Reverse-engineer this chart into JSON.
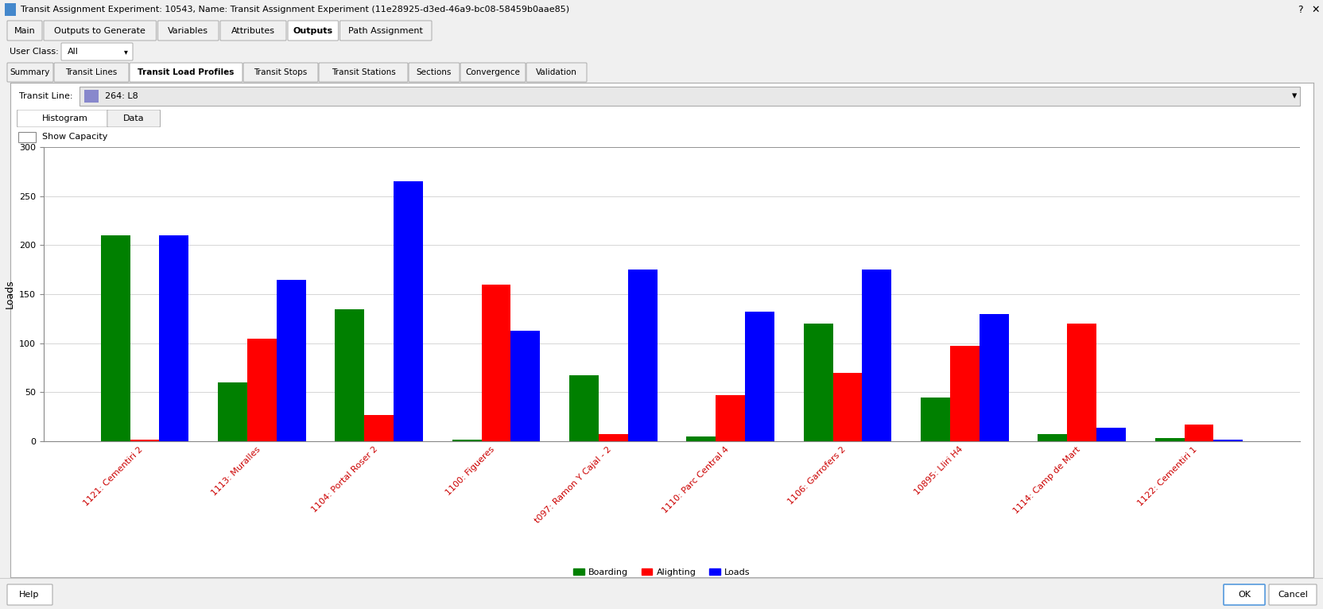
{
  "title": "Transit Assignment Experiment: 10543, Name: Transit Assignment Experiment (11e28925-d3ed-46a9-bc08-58459b0aae85)",
  "tab_labels": [
    "Main",
    "Outputs to Generate",
    "Variables",
    "Attributes",
    "Outputs",
    "Path Assignment"
  ],
  "active_tab": "Outputs",
  "sub_tabs": [
    "Summary",
    "Transit Lines",
    "Transit Load Profiles",
    "Transit Stops",
    "Transit Stations",
    "Sections",
    "Convergence",
    "Validation"
  ],
  "active_sub_tab": "Transit Load Profiles",
  "transit_line": "264: L8",
  "ylabel": "Loads",
  "ylim": [
    0,
    300
  ],
  "yticks": [
    0,
    50,
    100,
    150,
    200,
    250,
    300
  ],
  "categories": [
    "1121: Cementiri 2",
    "1113: Muralles",
    "1104: Portal Roser 2",
    "1100: Figueres",
    "t097: Ramon Y Cajal - 2",
    "1110: Parc Central 4",
    "1106: Garrofers 2",
    "10895: Lliri H4",
    "1114: Camp de Mart",
    "1122: Cementiri 1"
  ],
  "boarding": [
    210,
    60,
    135,
    2,
    67,
    5,
    120,
    45,
    7,
    3
  ],
  "alighting": [
    2,
    105,
    27,
    160,
    7,
    47,
    70,
    97,
    120,
    17
  ],
  "loads": [
    210,
    165,
    265,
    113,
    175,
    132,
    175,
    130,
    14,
    2
  ],
  "boarding_color": "#008000",
  "alighting_color": "#ff0000",
  "loads_color": "#0000ff",
  "bar_width": 0.25,
  "bg_color": "#f0f0f0",
  "chart_bg": "#ffffff",
  "title_bar_color": "#dce6f4",
  "legend_labels": [
    "Boarding",
    "Alighting",
    "Loads"
  ],
  "grid_color": "#d0d0d0",
  "xlabel_color": "#cc0000",
  "panel_bg": "#f0f0f0",
  "inner_panel_bg": "#ffffff"
}
